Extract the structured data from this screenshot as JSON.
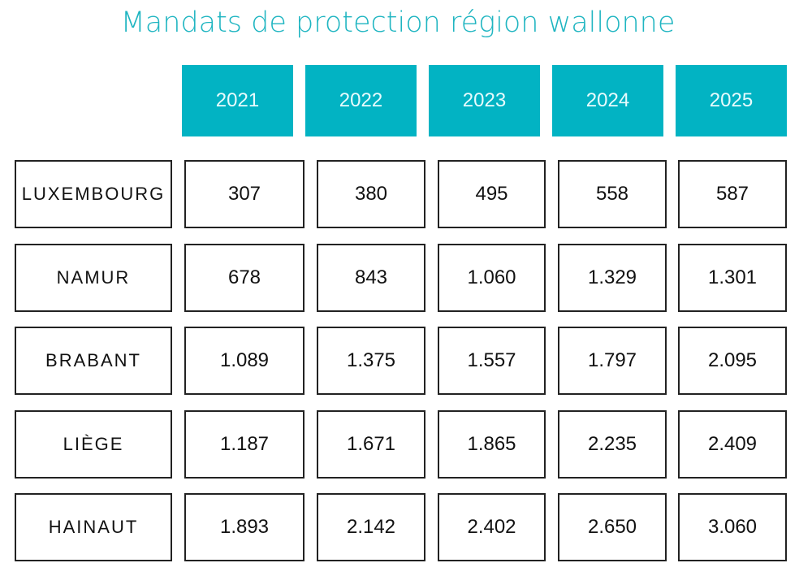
{
  "chart_data": {
    "type": "table",
    "title": "Mandats de protection région wallonne",
    "columns": [
      "2021",
      "2022",
      "2023",
      "2024",
      "2025"
    ],
    "rows": [
      {
        "label": "LUXEMBOURG",
        "values": [
          "307",
          "380",
          "495",
          "558",
          "587"
        ]
      },
      {
        "label": "NAMUR",
        "values": [
          "678",
          "843",
          "1.060",
          "1.329",
          "1.301"
        ]
      },
      {
        "label": "BRABANT",
        "values": [
          "1.089",
          "1.375",
          "1.557",
          "1.797",
          "2.095"
        ]
      },
      {
        "label": "LIÈGE",
        "values": [
          "1.187",
          "1.671",
          "1.865",
          "2.235",
          "2.409"
        ]
      },
      {
        "label": "HAINAUT",
        "values": [
          "1.893",
          "2.142",
          "2.402",
          "2.650",
          "3.060"
        ]
      }
    ],
    "colors": {
      "accent": "#02b3c3",
      "title": "#1fb5c1",
      "border": "#222222"
    }
  }
}
